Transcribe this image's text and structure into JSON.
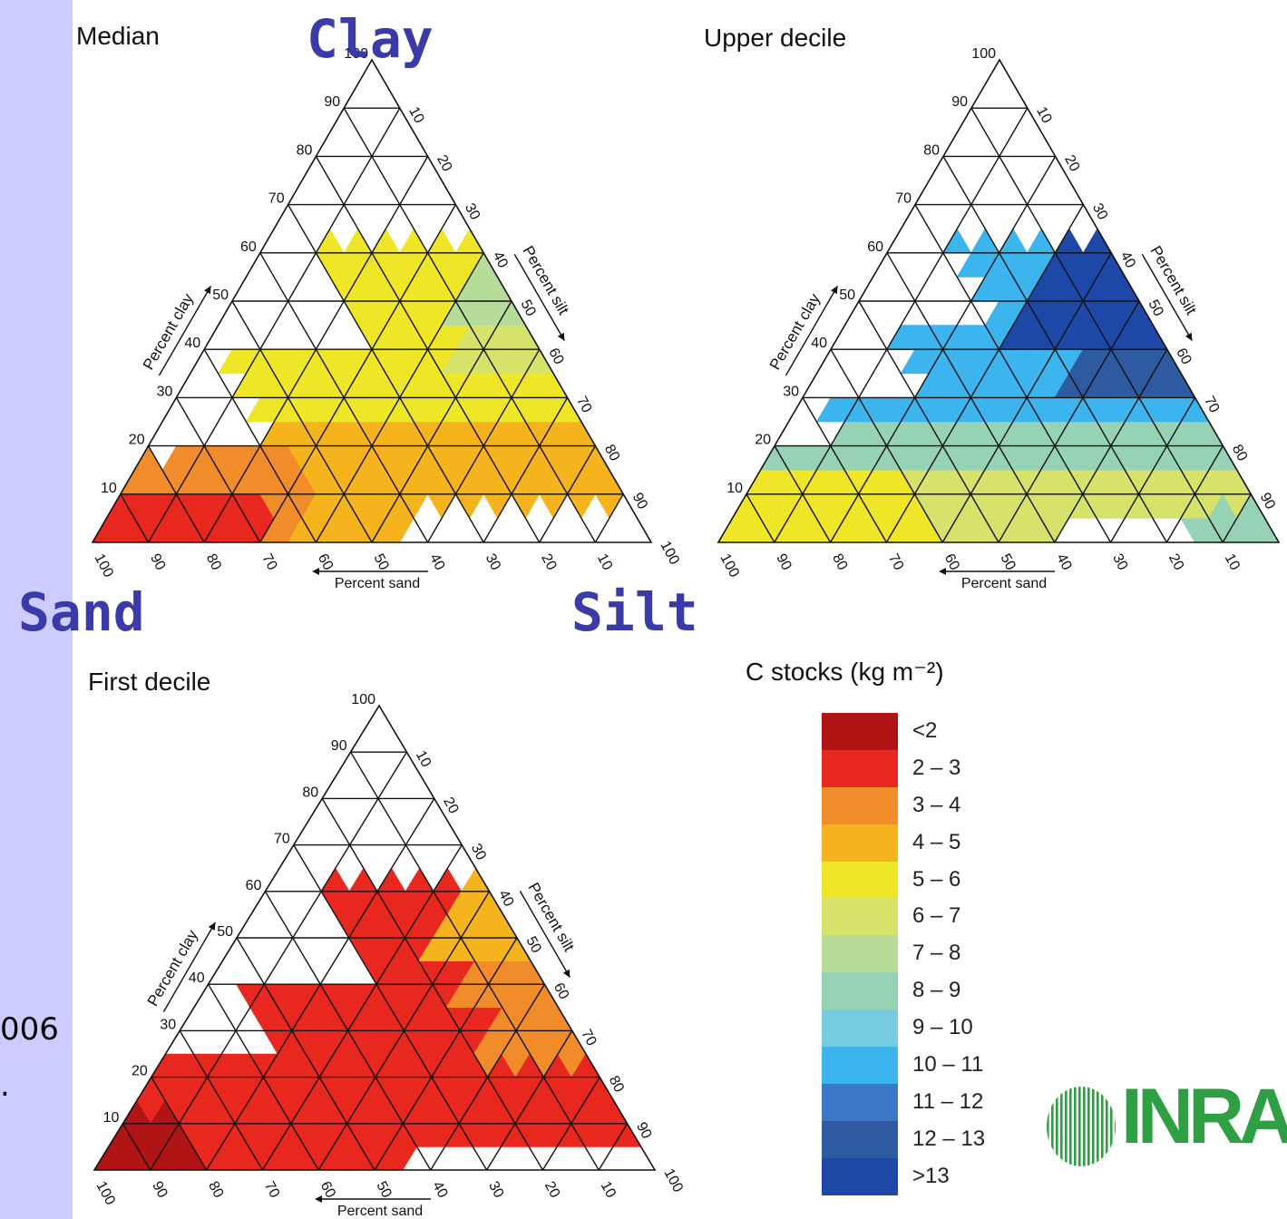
{
  "chart_data": {
    "type": "heatmap",
    "subtype": "ternary",
    "vertex_labels": {
      "top": "Clay",
      "left": "Sand",
      "right": "Silt"
    },
    "axis_labels": {
      "clay": "Percent clay",
      "silt": "Percent silt",
      "sand": "Percent sand"
    },
    "clay_ticks": [
      "10",
      "20",
      "30",
      "40",
      "50",
      "60",
      "70",
      "80",
      "90",
      "100"
    ],
    "silt_ticks": [
      "10",
      "20",
      "30",
      "40",
      "50",
      "60",
      "70",
      "80",
      "90",
      "100"
    ],
    "sand_ticks": [
      "100",
      "90",
      "80",
      "70",
      "60",
      "50",
      "40",
      "30",
      "20",
      "10"
    ],
    "panels": [
      {
        "title": "Median",
        "region": [
          {
            "sand": [
              0,
              0
            ],
            "clay": [
              0,
              60
            ],
            "class": "4 – 5"
          }
        ]
      },
      {
        "title": "Upper decile",
        "region": [
          {
            "class": "8 – 9"
          }
        ]
      },
      {
        "title": "First decile",
        "region": [
          {
            "class": "2 – 3"
          }
        ]
      }
    ],
    "colorbar": {
      "title": "C stocks (kg m⁻²)",
      "classes": [
        {
          "label": "<2",
          "color": "#b01414"
        },
        {
          "label": "2 – 3",
          "color": "#e8281e"
        },
        {
          "label": "3 – 4",
          "color": "#f08c2a"
        },
        {
          "label": "4 – 5",
          "color": "#f5b41e"
        },
        {
          "label": "5 – 6",
          "color": "#f0e628"
        },
        {
          "label": "6 – 7",
          "color": "#d6e26a"
        },
        {
          "label": "7 – 8",
          "color": "#b6dc9a"
        },
        {
          "label": "8 – 9",
          "color": "#96d2b4"
        },
        {
          "label": "9 – 10",
          "color": "#78cce2"
        },
        {
          "label": "10 – 11",
          "color": "#3cb4ee"
        },
        {
          "label": "11 – 12",
          "color": "#3c78c8"
        },
        {
          "label": "12 – 13",
          "color": "#2d5aa0"
        },
        {
          "label": ">13",
          "color": "#1e48a8"
        }
      ]
    }
  },
  "side_text": {
    "line1": "006",
    "line2": "."
  },
  "logo": {
    "text": "INRA"
  }
}
